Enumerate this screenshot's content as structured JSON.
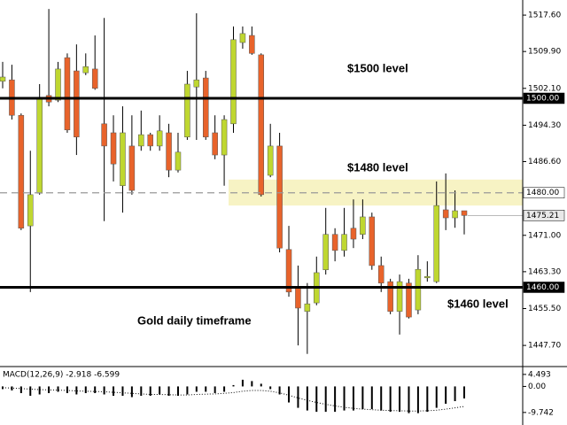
{
  "chart_data": [
    {
      "type": "candlestick",
      "up_color": "#bfd730",
      "down_color": "#e8632b",
      "open": [
        1503.6,
        1503.9,
        1496.4,
        1473.0,
        1479.9,
        1500.6,
        1499.6,
        1508.6,
        1505.8,
        1505.4,
        1506.2,
        1494.6,
        1492.7,
        1481.5,
        1489.9,
        1489.9,
        1492.3,
        1489.9,
        1492.7,
        1484.8,
        1491.8,
        1502.4,
        1504.3,
        1492.7,
        1488.0,
        1494.6,
        1511.8,
        1513.3,
        1509.2,
        1483.7,
        1489.9,
        1468.0,
        1459.9,
        1454.9,
        1456.7,
        1463.7,
        1471.2,
        1467.8,
        1472.5,
        1471.2,
        1474.9,
        1464.6,
        1461.2,
        1454.9,
        1460.9,
        1455.2,
        1462.0,
        1461.2,
        1476.4,
        1474.7,
        1476.2
      ],
      "high": [
        1507.7,
        1507.1,
        1496.8,
        1488.9,
        1503.0,
        1518.9,
        1507.7,
        1509.5,
        1511.4,
        1509.5,
        1513.3,
        1517.0,
        1496.4,
        1498.3,
        1496.4,
        1497.4,
        1492.7,
        1496.4,
        1494.6,
        1492.7,
        1505.8,
        1518.0,
        1505.8,
        1496.4,
        1496.4,
        1515.2,
        1515.2,
        1515.2,
        1509.5,
        1494.6,
        1492.7,
        1473.0,
        1464.6,
        1460.9,
        1466.5,
        1476.8,
        1472.5,
        1476.8,
        1478.6,
        1478.6,
        1475.8,
        1466.5,
        1461.8,
        1462.7,
        1461.8,
        1466.8,
        1465.5,
        1482.4,
        1484.1,
        1480.5,
        1476.2
      ],
      "low": [
        1502.1,
        1495.5,
        1472.1,
        1459.0,
        1479.6,
        1498.3,
        1499.2,
        1492.7,
        1488.0,
        1504.9,
        1501.8,
        1474.0,
        1482.4,
        1475.8,
        1479.6,
        1488.9,
        1488.9,
        1488.9,
        1483.3,
        1484.3,
        1491.2,
        1491.2,
        1491.2,
        1487.1,
        1481.5,
        1492.7,
        1510.5,
        1509.2,
        1479.2,
        1483.3,
        1467.4,
        1458.0,
        1447.7,
        1445.9,
        1456.2,
        1462.7,
        1465.5,
        1466.5,
        1468.3,
        1470.2,
        1463.7,
        1459.0,
        1454.3,
        1450.0,
        1453.4,
        1454.3,
        1461.2,
        1460.9,
        1472.1,
        1472.6,
        1471.2
      ],
      "close": [
        1504.5,
        1496.4,
        1472.5,
        1479.6,
        1500.2,
        1499.2,
        1506.2,
        1493.3,
        1491.8,
        1506.7,
        1502.1,
        1489.9,
        1486.1,
        1492.7,
        1480.5,
        1492.3,
        1489.9,
        1493.1,
        1484.8,
        1488.6,
        1503.0,
        1503.9,
        1491.8,
        1488.0,
        1495.5,
        1512.4,
        1513.7,
        1509.5,
        1479.6,
        1489.9,
        1468.3,
        1459.0,
        1455.6,
        1456.5,
        1463.1,
        1471.2,
        1467.8,
        1471.2,
        1470.2,
        1474.9,
        1464.6,
        1460.9,
        1454.9,
        1461.2,
        1453.7,
        1463.8,
        1462.3,
        1477.3,
        1474.7,
        1476.2,
        1475.2
      ],
      "ylim": [
        1443.6,
        1520.8
      ],
      "yticks": [
        {
          "value": 1517.6,
          "label": "1517.60"
        },
        {
          "value": 1509.9,
          "label": "1509.90"
        },
        {
          "value": 1502.1,
          "label": "1502.10"
        },
        {
          "value": 1494.3,
          "label": "1494.30"
        },
        {
          "value": 1486.6,
          "label": "1486.60"
        },
        {
          "value": 1471.0,
          "label": "1471.00"
        },
        {
          "value": 1463.3,
          "label": "1463.30"
        },
        {
          "value": 1455.5,
          "label": "1455.50"
        },
        {
          "value": 1447.7,
          "label": "1447.70"
        }
      ],
      "levels": [
        {
          "value": 1500,
          "label": "1500.00",
          "style": "solid"
        },
        {
          "value": 1480,
          "label": "1480.00",
          "style": "dashed"
        },
        {
          "value": 1460,
          "label": "1460.00",
          "style": "solid"
        }
      ],
      "current_price": {
        "value": 1475.21,
        "label": "1475.21"
      },
      "zone": [
        1477.3,
        1482.8
      ],
      "zone_color": "#f7f3c4",
      "annotations": [
        "$1500 level",
        "$1480 level",
        "$1460 level",
        "Gold daily timeframe"
      ]
    },
    {
      "type": "macd",
      "title": "MACD(12,26,9) -2.918 -6.599",
      "color": "#000000",
      "histogram": [
        -1.0,
        -1.5,
        -2.5,
        -3.5,
        -3.0,
        -2.5,
        -2.0,
        -2.5,
        -3.0,
        -2.5,
        -2.5,
        -3.0,
        -3.5,
        -3.5,
        -4.0,
        -3.5,
        -3.5,
        -3.0,
        -3.5,
        -3.5,
        -3.0,
        -2.0,
        -2.0,
        -2.5,
        -2.0,
        0.5,
        2.5,
        2.0,
        1.0,
        -1.0,
        -3.0,
        -6.0,
        -8.0,
        -9.0,
        -9.5,
        -9.5,
        -9.5,
        -9.0,
        -9.0,
        -8.5,
        -8.5,
        -9.0,
        -9.5,
        -9.5,
        -10.0,
        -10.0,
        -9.5,
        -8.0,
        -6.5,
        -5.5,
        -4.5
      ],
      "signal": [
        -0.5,
        -0.6,
        -0.8,
        -1.0,
        -1.2,
        -1.3,
        -1.4,
        -1.5,
        -1.7,
        -1.8,
        -1.9,
        -2.0,
        -2.2,
        -2.4,
        -2.6,
        -2.8,
        -3.0,
        -3.0,
        -3.1,
        -3.2,
        -3.2,
        -3.0,
        -2.9,
        -2.8,
        -2.6,
        -2.3,
        -1.8,
        -1.5,
        -1.5,
        -1.8,
        -2.4,
        -3.3,
        -4.3,
        -5.2,
        -6.0,
        -6.7,
        -7.3,
        -7.8,
        -8.2,
        -8.5,
        -8.7,
        -8.9,
        -9.0,
        -9.1,
        -9.2,
        -9.2,
        -9.1,
        -8.9,
        -8.5,
        -8.0,
        -7.5
      ],
      "ylim": [
        -14.1,
        7.1
      ],
      "yticks": [
        4.493,
        {
          "value": 0,
          "label": "0.00"
        },
        -9.742
      ]
    }
  ]
}
